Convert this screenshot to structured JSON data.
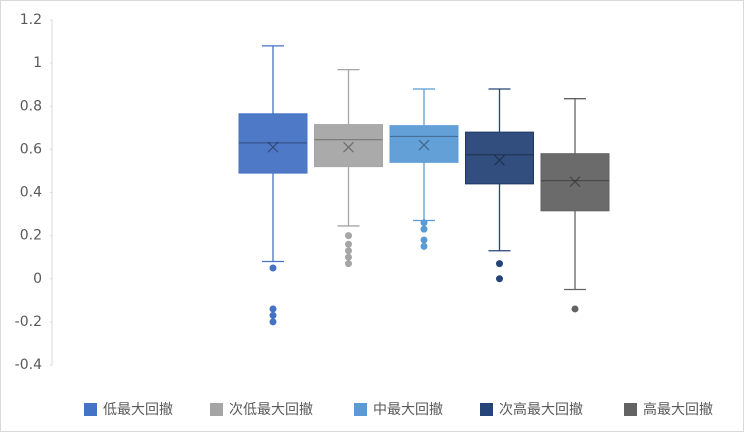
{
  "chart_data": {
    "type": "box",
    "ylim": [
      -0.4,
      1.2
    ],
    "yticks": [
      -0.4,
      -0.2,
      0,
      0.2,
      0.4,
      0.6,
      0.8,
      1,
      1.2
    ],
    "series": [
      {
        "name": "低最大回撤",
        "color": "#4472c4",
        "whisker_low": 0.08,
        "q1": 0.49,
        "median": 0.63,
        "q3": 0.765,
        "whisker_high": 1.08,
        "mean": 0.61,
        "outliers": [
          0.05,
          -0.14,
          -0.17,
          -0.2
        ]
      },
      {
        "name": "次低最大回撤",
        "color": "#a5a5a5",
        "whisker_low": 0.245,
        "q1": 0.52,
        "median": 0.645,
        "q3": 0.715,
        "whisker_high": 0.97,
        "mean": 0.61,
        "outliers": [
          0.2,
          0.16,
          0.13,
          0.1,
          0.07
        ]
      },
      {
        "name": "中最大回撤",
        "color": "#5b9bd5",
        "whisker_low": 0.27,
        "q1": 0.54,
        "median": 0.66,
        "q3": 0.71,
        "whisker_high": 0.88,
        "mean": 0.62,
        "outliers": [
          0.26,
          0.23,
          0.18,
          0.15
        ]
      },
      {
        "name": "次高最大回撤",
        "color": "#264478",
        "whisker_low": 0.13,
        "q1": 0.44,
        "median": 0.575,
        "q3": 0.68,
        "whisker_high": 0.88,
        "mean": 0.55,
        "outliers": [
          0.07,
          0.0
        ]
      },
      {
        "name": "高最大回撤",
        "color": "#636363",
        "whisker_low": -0.05,
        "q1": 0.315,
        "median": 0.455,
        "q3": 0.58,
        "whisker_high": 0.835,
        "mean": 0.45,
        "outliers": [
          -0.14
        ]
      }
    ]
  }
}
